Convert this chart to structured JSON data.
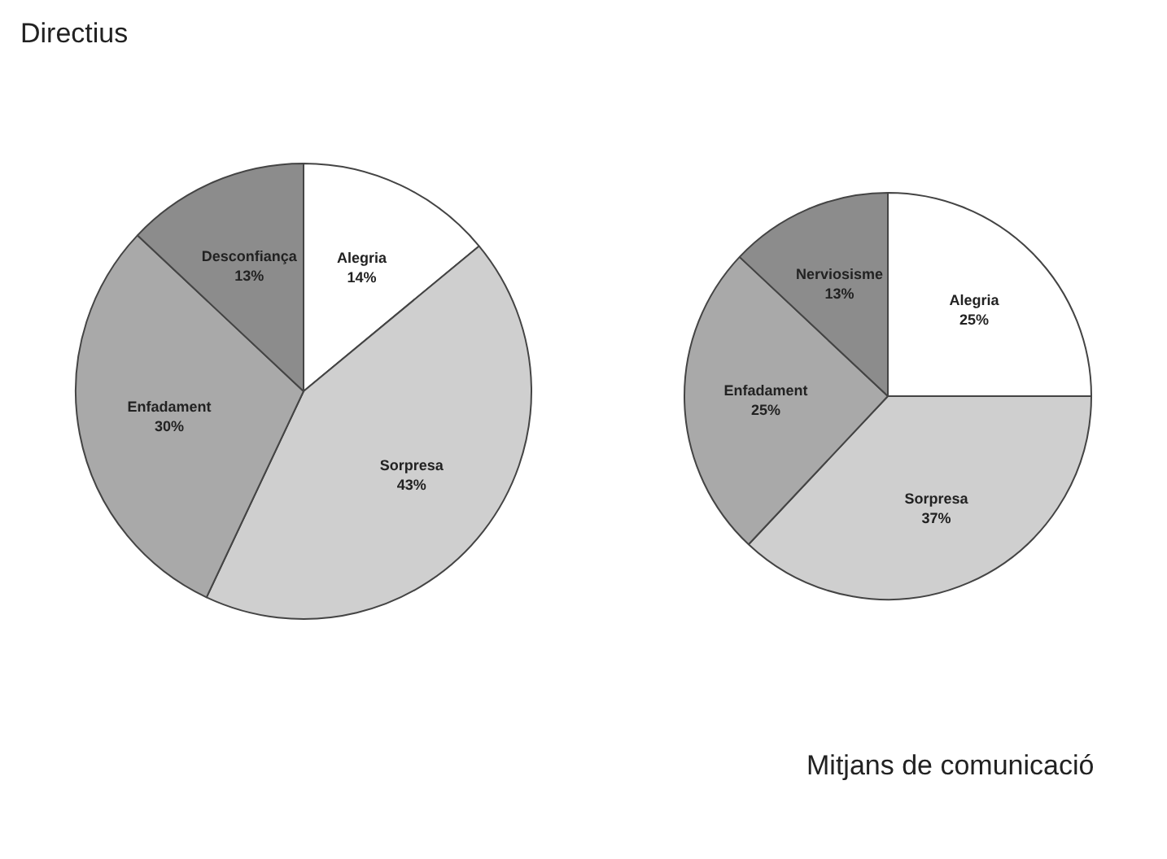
{
  "chart_data": [
    {
      "type": "pie",
      "title": "Directius",
      "categories": [
        "Alegria",
        "Sorpresa",
        "Enfadament",
        "Desconfiança"
      ],
      "values": [
        14,
        43,
        30,
        13
      ],
      "colors": [
        "#ffffff",
        "#cfcfcf",
        "#a9a9a9",
        "#8c8c8c"
      ],
      "value_labels": [
        "14%",
        "43%",
        "30%",
        "13%"
      ]
    },
    {
      "type": "pie",
      "title": "Mitjans de comunicació",
      "categories": [
        "Alegria",
        "Sorpresa",
        "Enfadament",
        "Nerviosisme"
      ],
      "values": [
        25,
        37,
        25,
        13
      ],
      "colors": [
        "#ffffff",
        "#cfcfcf",
        "#a9a9a9",
        "#8c8c8c"
      ],
      "value_labels": [
        "25%",
        "37%",
        "25%",
        "13%"
      ]
    }
  ]
}
